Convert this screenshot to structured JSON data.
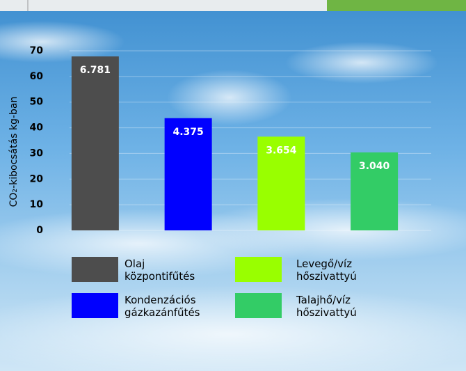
{
  "chart_data": {
    "type": "bar",
    "y_label": "CO₂-kibocsátás kg-ban",
    "categories": [
      null,
      null,
      null,
      null
    ],
    "series": [
      {
        "name": "Olaj központifűtés",
        "color": "#4d4d4d"
      },
      {
        "name": "Kondenzációs gázkazánfűtés",
        "color": "#0000ff"
      },
      {
        "name": "Levegő/víz hőszivattyú",
        "color": "#99ff00"
      },
      {
        "name": "Talajhő/víz hőszivattyú",
        "color": "#33cc66"
      }
    ],
    "values": [
      67.81,
      43.75,
      36.54,
      30.4
    ],
    "value_labels": [
      "6.781",
      "4.375",
      "3.654",
      "3.040"
    ],
    "ylim": [
      0,
      70
    ],
    "yticks": [
      0,
      10,
      20,
      30,
      40,
      50,
      60,
      70
    ],
    "grid": true
  }
}
